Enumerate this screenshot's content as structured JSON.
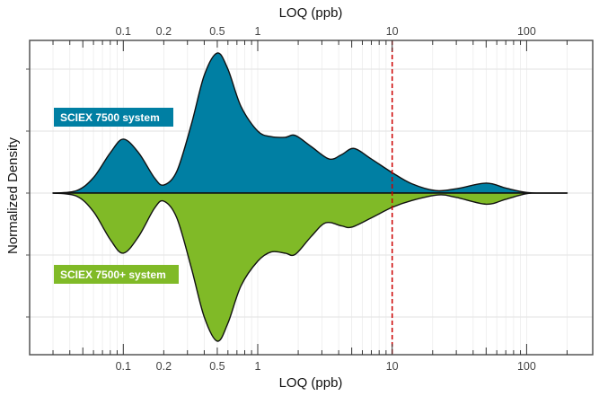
{
  "chart_data": {
    "type": "area",
    "subtype": "mirrored density (log x)",
    "xlabel_top": "LOQ (ppb)",
    "xlabel_bottom": "LOQ (ppb)",
    "ylabel": "Normalized Density",
    "x_scale": "log",
    "xlim": [
      0.03,
      200
    ],
    "ylim": [
      -2.6,
      2.46
    ],
    "x_tick_labels": [
      "0.1",
      "0.2",
      "0.5",
      "1",
      "10",
      "100"
    ],
    "x_tick_values": [
      0.1,
      0.2,
      0.5,
      1,
      10,
      100
    ],
    "grid": true,
    "reference_line": {
      "x": 10,
      "color": "#cc0000",
      "style": "dashed"
    },
    "series": [
      {
        "name": "SCIEX 7500 system",
        "color": "#007FA3",
        "direction": "up",
        "x": [
          0.03,
          0.045,
          0.06,
          0.08,
          0.1,
          0.13,
          0.17,
          0.2,
          0.25,
          0.32,
          0.4,
          0.5,
          0.6,
          0.75,
          1.0,
          1.26,
          1.6,
          1.9,
          2.5,
          3.4,
          4.2,
          5.2,
          7,
          10,
          14,
          21,
          30,
          50,
          70,
          100,
          140,
          200
        ],
        "values": [
          0,
          0.04,
          0.25,
          0.65,
          0.87,
          0.65,
          0.25,
          0.13,
          0.35,
          1.1,
          1.9,
          2.26,
          2.0,
          1.4,
          1.0,
          0.91,
          0.9,
          0.93,
          0.75,
          0.55,
          0.62,
          0.72,
          0.55,
          0.33,
          0.15,
          0.04,
          0.07,
          0.16,
          0.08,
          0.01,
          0,
          0
        ]
      },
      {
        "name": "SCIEX 7500+ system",
        "color": "#80BA27",
        "direction": "down",
        "x": [
          0.03,
          0.045,
          0.06,
          0.08,
          0.1,
          0.13,
          0.17,
          0.2,
          0.25,
          0.32,
          0.4,
          0.5,
          0.6,
          0.75,
          1.0,
          1.26,
          1.6,
          1.9,
          2.5,
          3.2,
          4.2,
          5.0,
          7,
          10,
          14,
          22,
          30,
          50,
          70,
          100,
          140,
          200
        ],
        "values": [
          0,
          0.05,
          0.3,
          0.75,
          0.97,
          0.7,
          0.25,
          0.13,
          0.4,
          1.2,
          2.0,
          2.39,
          2.1,
          1.5,
          1.1,
          0.95,
          0.97,
          0.99,
          0.7,
          0.48,
          0.53,
          0.55,
          0.4,
          0.23,
          0.12,
          0.03,
          0.07,
          0.18,
          0.1,
          0.01,
          0,
          0
        ]
      }
    ]
  }
}
